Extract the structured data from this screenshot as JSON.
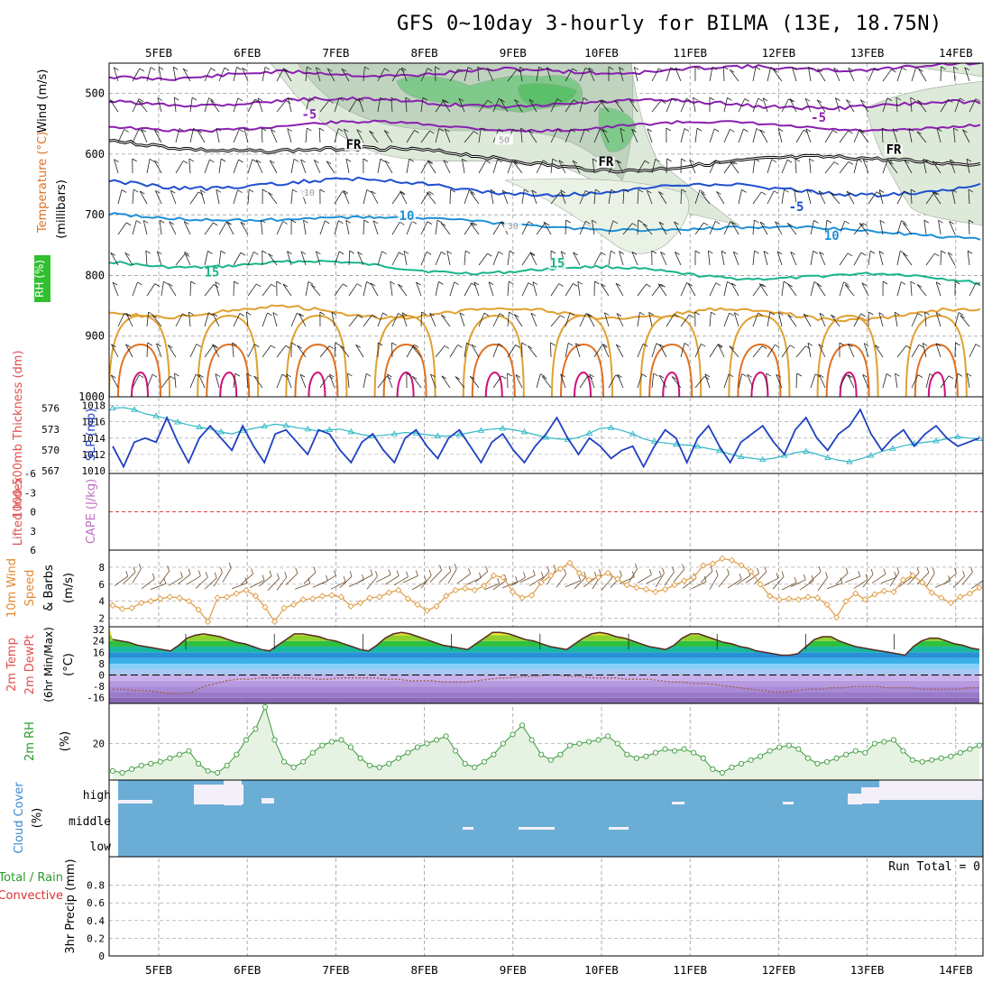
{
  "title": "GFS 0~10day 3-hourly for BILMA (13E, 18.75N)",
  "colors": {
    "frame": "#000000",
    "grid": "#9a9a9a",
    "rh_fill": "#7fc98a",
    "temp_purple": "#8a1fb0",
    "temp_blue": "#1e4fd0",
    "temp_lightblue": "#1e90d8",
    "temp_teal": "#19b58a",
    "temp_orange": "#e0a030",
    "temp_darkorange": "#e07020",
    "temp_magenta": "#d0107a",
    "slp_line": "#2040c0",
    "thickness_line": "#30b8c8",
    "wind_line": "#e09a40",
    "barb": "#6b4a2a",
    "dew_line": "#a0604a",
    "rh2m_line": "#3a9a3a",
    "rh2m_fill": "#e6f2e2",
    "cloud_fill": "#6aaed6",
    "cloud_clear": "#f4f0fa",
    "lifted_zero": "#e04040"
  },
  "chart_data": {
    "days": [
      "5FEB",
      "6FEB",
      "7FEB",
      "8FEB",
      "9FEB",
      "10FEB",
      "11FEB",
      "12FEB",
      "13FEB",
      "14FEB"
    ],
    "panels": [
      {
        "id": "pressure-cross-section",
        "type": "heatmap",
        "ylabel_parts": [
          "RH (%)",
          "Temperature (°C)",
          "Wind (m/s)"
        ],
        "ylabel_units": "(millibars)",
        "y_ticks": [
          500,
          600,
          700,
          800,
          900,
          1000
        ],
        "ylim": [
          450,
          1000
        ],
        "contour_labels": [
          {
            "text": "-5",
            "day": 1.7,
            "level": 540,
            "color": "temp_purple"
          },
          {
            "text": "-5",
            "day": 7.45,
            "level": 545,
            "color": "temp_purple"
          },
          {
            "text": "FR",
            "day": 2.2,
            "level": 590,
            "color": "frame"
          },
          {
            "text": "FR",
            "day": 5.05,
            "level": 618,
            "color": "frame"
          },
          {
            "text": "FR",
            "day": 8.3,
            "level": 598,
            "color": "frame"
          },
          {
            "text": "-5",
            "day": 7.2,
            "level": 692,
            "color": "temp_blue"
          },
          {
            "text": "10",
            "day": 2.8,
            "level": 707,
            "color": "temp_lightblue"
          },
          {
            "text": "10",
            "day": 7.6,
            "level": 740,
            "color": "temp_lightblue"
          },
          {
            "text": "15",
            "day": 0.6,
            "level": 800,
            "color": "temp_teal"
          },
          {
            "text": "15",
            "day": 4.5,
            "level": 785,
            "color": "temp_teal"
          },
          {
            "text": "50",
            "day": 3.9,
            "level": 580,
            "color": "grid"
          },
          {
            "text": "30",
            "day": 4.0,
            "level": 722,
            "color": "grid"
          },
          {
            "text": "10",
            "day": 1.7,
            "level": 667,
            "color": "grid"
          }
        ]
      },
      {
        "id": "slp-thickness",
        "type": "line",
        "ylabel_left": "1000-500mb Thickness (dm)",
        "ylabel_right": "SLP (mb)",
        "thickness_ticks": [
          567,
          570,
          573,
          576
        ],
        "slp_ticks": [
          1010,
          1012,
          1014,
          1016,
          1018
        ],
        "series": [
          {
            "name": "SLP (mb)",
            "values": [
              1013.0,
              1010.5,
              1013.5,
              1014.0,
              1013.5,
              1016.5,
              1013.5,
              1011.0,
              1014.0,
              1015.5,
              1014.0,
              1012.5,
              1015.5,
              1013.0,
              1011.0,
              1014.5,
              1015.0,
              1013.5,
              1012.0,
              1015.0,
              1014.5,
              1012.5,
              1011.0,
              1013.5,
              1014.5,
              1012.5,
              1011.0,
              1014.0,
              1015.0,
              1013.0,
              1011.5,
              1014.0,
              1015.0,
              1013.0,
              1011.0,
              1013.5,
              1014.5,
              1012.5,
              1011.0,
              1013.0,
              1014.5,
              1016.5,
              1014.0,
              1012.0,
              1014.0,
              1013.0,
              1011.5,
              1012.5,
              1013.0,
              1010.5,
              1013.0,
              1015.0,
              1014.0,
              1011.0,
              1014.0,
              1015.5,
              1013.0,
              1011.0,
              1013.5,
              1014.5,
              1015.5,
              1013.5,
              1012.0,
              1015.0,
              1016.5,
              1014.0,
              1012.5,
              1014.5,
              1015.5,
              1017.5,
              1014.5,
              1012.5,
              1014.0,
              1015.0,
              1013.0,
              1014.5,
              1015.5,
              1014.0,
              1013.0,
              1013.5,
              1014.0
            ]
          },
          {
            "name": "Thickness (dm)",
            "values": [
              576.0,
              576.1,
              575.8,
              575.2,
              574.9,
              574.5,
              574.0,
              573.6,
              573.3,
              573.0,
              572.6,
              572.3,
              572.8,
              573.1,
              573.4,
              573.7,
              573.5,
              573.2,
              573.0,
              572.7,
              572.9,
              573.0,
              572.6,
              572.2,
              572.0,
              572.1,
              572.3,
              572.5,
              572.4,
              572.2,
              572.0,
              572.0,
              572.2,
              572.5,
              572.8,
              573.0,
              573.1,
              572.9,
              572.6,
              572.2,
              571.8,
              571.6,
              571.5,
              571.8,
              572.4,
              573.1,
              573.2,
              572.8,
              572.3,
              571.6,
              571.2,
              571.0,
              570.8,
              570.7,
              570.5,
              570.2,
              569.9,
              569.4,
              569.0,
              568.8,
              568.6,
              568.8,
              569.2,
              569.6,
              569.8,
              569.4,
              568.9,
              568.5,
              568.3,
              568.7,
              569.2,
              569.8,
              570.2,
              570.6,
              570.9,
              571.1,
              571.3,
              571.6,
              571.9,
              571.7,
              571.6
            ]
          }
        ]
      },
      {
        "id": "lifted-cape",
        "type": "line",
        "ylabel_left": "Lifted Index",
        "ylabel_right": "CAPE (J/kg)",
        "y_ticks": [
          "-6",
          "-3",
          "0",
          "3",
          "6"
        ],
        "series": []
      },
      {
        "id": "wind10m",
        "type": "line",
        "ylabel": "10m Wind Speed & Barbs (m/s)",
        "y_ticks": [
          2,
          4,
          6,
          8
        ],
        "ylim": [
          1,
          10
        ],
        "series": [
          {
            "name": "10m Wind Speed",
            "values": [
              3.5,
              3.1,
              3.2,
              3.8,
              4.0,
              4.3,
              4.5,
              4.4,
              4.0,
              3.0,
              1.6,
              4.4,
              4.5,
              4.9,
              5.3,
              4.6,
              3.3,
              1.6,
              3.2,
              3.6,
              4.2,
              4.3,
              4.6,
              4.7,
              4.5,
              3.4,
              3.8,
              4.4,
              4.5,
              5.0,
              5.3,
              4.3,
              3.6,
              2.9,
              3.4,
              4.6,
              5.3,
              5.5,
              5.3,
              5.8,
              7.0,
              6.8,
              5.1,
              4.4,
              4.7,
              6.2,
              7.0,
              7.8,
              8.5,
              7.3,
              6.5,
              6.8,
              7.3,
              6.6,
              5.9,
              5.6,
              5.4,
              5.1,
              5.4,
              5.9,
              6.4,
              6.8,
              8.2,
              8.4,
              9.0,
              8.8,
              8.2,
              7.5,
              6.0,
              4.6,
              4.2,
              4.3,
              4.2,
              4.5,
              4.4,
              3.6,
              2.1,
              4.0,
              4.9,
              4.2,
              4.8,
              5.2,
              5.1,
              6.5,
              7.0,
              6.2,
              5.0,
              4.4,
              3.8,
              4.5,
              4.9,
              5.6
            ]
          }
        ]
      },
      {
        "id": "temp2m",
        "type": "area",
        "ylabel": "2m Temp 2m DewPt (6hr Min/Max) (°C)",
        "y_ticks": [
          -16,
          -8,
          0,
          8,
          16,
          24,
          32
        ],
        "ylim": [
          -20,
          34
        ],
        "band_colors": [
          "#8a6ab8",
          "#9a7ac8",
          "#a88ad8",
          "#b89ae0",
          "#c8b0ea",
          "#a8c8f0",
          "#88d0f8",
          "#3ab0e8",
          "#2890d8",
          "#1ab8a0",
          "#30c040",
          "#90d030",
          "#e8e030",
          "#f0b020",
          "#e87818",
          "#d84818"
        ],
        "series": [
          {
            "name": "2m Temp",
            "values": [
              25,
              24,
              23,
              21,
              20,
              19,
              18,
              17,
              21,
              26,
              28,
              29,
              28,
              27,
              25,
              23,
              22,
              20,
              18,
              17,
              21,
              25,
              29,
              29,
              28,
              27,
              25,
              24,
              22,
              20,
              18,
              17,
              21,
              26,
              29,
              30,
              29,
              27,
              25,
              23,
              21,
              20,
              19,
              18,
              22,
              26,
              30,
              30,
              29,
              27,
              25,
              24,
              22,
              20,
              19,
              18,
              22,
              26,
              29,
              30,
              29,
              27,
              26,
              24,
              22,
              20,
              19,
              18,
              21,
              26,
              29,
              29,
              27,
              25,
              23,
              22,
              20,
              19,
              17,
              16,
              15,
              14,
              14,
              15,
              20,
              25,
              27,
              27,
              24,
              22,
              20,
              19,
              18,
              17,
              16,
              15,
              14,
              20,
              24,
              26,
              26,
              24,
              22,
              21,
              19,
              18
            ]
          },
          {
            "name": "2m DewPt",
            "values": [
              -10,
              -10,
              -11,
              -11,
              -12,
              -13,
              -13,
              -12,
              -8,
              -6,
              -4,
              -3,
              -3,
              -2,
              -2,
              -2,
              -2,
              -2,
              -3,
              -3,
              -2,
              -2,
              -2,
              -2,
              -3,
              -3,
              -4,
              -4,
              -4,
              -5,
              -5,
              -5,
              -4,
              -3,
              -2,
              -2,
              -1,
              -1,
              0,
              0,
              -1,
              -1,
              -2,
              -2,
              -2,
              -3,
              -3,
              -3,
              -4,
              -5,
              -5,
              -6,
              -6,
              -7,
              -8,
              -9,
              -10,
              -11,
              -12,
              -12,
              -11,
              -10,
              -10,
              -9,
              -9,
              -8,
              -8,
              -8,
              -9,
              -9,
              -9,
              -10,
              -10,
              -10,
              -10,
              -9,
              -9
            ]
          }
        ]
      },
      {
        "id": "rh2m",
        "type": "area",
        "ylabel": "2m RH (%)",
        "y_ticks": [
          20
        ],
        "ylim": [
          0,
          42
        ],
        "series": [
          {
            "name": "2m RH",
            "values": [
              5,
              4,
              6,
              8,
              9,
              10,
              12,
              14,
              16,
              9,
              5,
              4,
              8,
              14,
              22,
              28,
              40,
              22,
              10,
              7,
              10,
              15,
              19,
              21,
              22,
              18,
              12,
              8,
              7,
              9,
              12,
              15,
              18,
              20,
              22,
              24,
              16,
              9,
              7,
              10,
              14,
              20,
              25,
              30,
              22,
              14,
              11,
              14,
              19,
              20,
              21,
              22,
              24,
              20,
              14,
              12,
              13,
              15,
              17,
              16,
              17,
              15,
              12,
              6,
              4,
              7,
              9,
              11,
              13,
              16,
              18,
              19,
              17,
              12,
              9,
              10,
              12,
              14,
              16,
              15,
              20,
              21,
              22,
              16,
              11,
              10,
              11,
              12,
              13,
              15,
              17,
              19
            ]
          }
        ]
      },
      {
        "id": "cloud-cover",
        "type": "heatmap",
        "ylabel": "Cloud Cover (%)",
        "levels": [
          "high",
          "middle",
          "low"
        ]
      },
      {
        "id": "precip",
        "type": "bar",
        "ylabel_left": "Total / Rain",
        "ylabel_left2": "Convective",
        "ylabel": "3hr Precip (mm)",
        "y_ticks": [
          "0",
          "0.2",
          "0.4",
          "0.6",
          "0.8"
        ],
        "ylim": [
          0,
          1
        ],
        "run_total": "Run Total = 0",
        "values": []
      }
    ]
  }
}
